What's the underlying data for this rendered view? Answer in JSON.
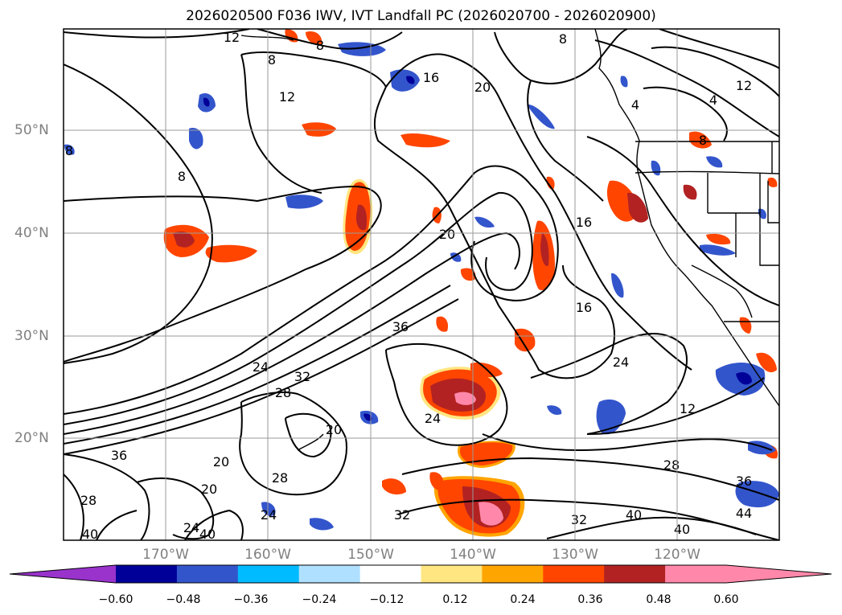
{
  "title": "2026020500 F036 IWV, IVT Landfall PC (2026020700 - 2026020900)",
  "lat_labels": [
    "50°N",
    "40°N",
    "30°N",
    "20°N"
  ],
  "lon_labels": [
    "170°W",
    "160°W",
    "150°W",
    "140°W",
    "130°W",
    "120°W"
  ],
  "colorbar": {
    "ticks": [
      "−0.60",
      "−0.48",
      "−0.36",
      "−0.24",
      "−0.12",
      "0.12",
      "0.24",
      "0.36",
      "0.48",
      "0.60"
    ],
    "colors": {
      "under": "#9933cc",
      "bins": [
        "#000099",
        "#3355cc",
        "#00bbff",
        "#b0e0ff",
        "#ffffff",
        "#ffe680",
        "#ffa500",
        "#ff4500",
        "#b22222",
        "#ff88aa"
      ]
    }
  },
  "contour_labels": [
    "12",
    "8",
    "8",
    "8",
    "12",
    "4",
    "16",
    "20",
    "12",
    "8",
    "8",
    "20",
    "16",
    "16",
    "36",
    "24",
    "32",
    "28",
    "20",
    "24",
    "24",
    "12",
    "36",
    "20",
    "20",
    "28",
    "28",
    "28",
    "24",
    "32",
    "32",
    "40",
    "40",
    "36",
    "44",
    "24",
    "40",
    "40",
    "4",
    "8"
  ]
}
